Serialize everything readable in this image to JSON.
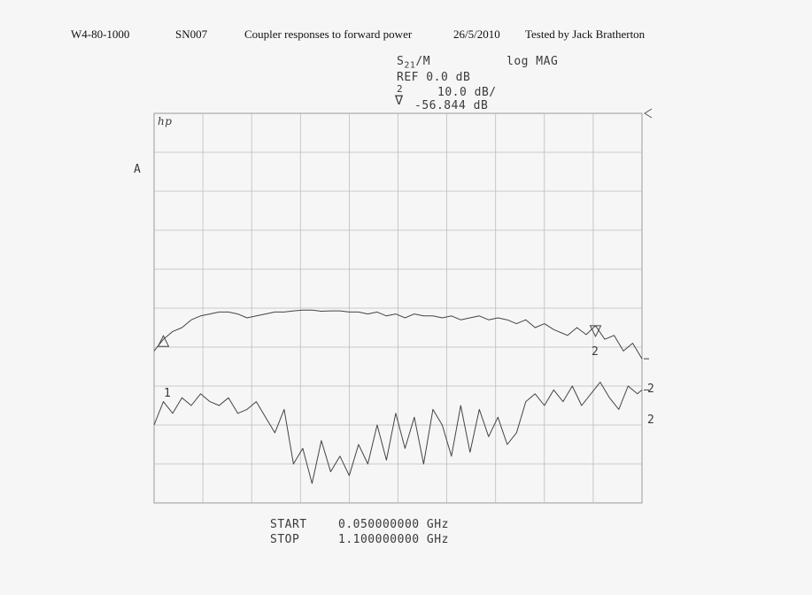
{
  "header": {
    "model": "W4-80-1000",
    "serial": "SN007",
    "description": "Coupler responses to forward power",
    "date": "26/5/2010",
    "tester": "Tested by Jack Bratherton"
  },
  "analyzer": {
    "param_s": "S",
    "param_sub": "21",
    "param_rest": "/M",
    "format": "log MAG",
    "ref": "REF 0.0 dB",
    "scale_channel": "2",
    "scale": "10.0 dB/",
    "marker_value": "-56.844 dB",
    "logo": "hp",
    "channel_label": "A",
    "start_label": "START",
    "start_value": "0.050000000 GHz",
    "stop_label": "STOP",
    "stop_value": "1.100000000 GHz",
    "marker1_label": "1",
    "marker2_label": "2",
    "trace_tag": "2"
  },
  "chart_data": {
    "type": "line",
    "x_unit": "GHz",
    "y_unit": "dB",
    "xlim": [
      0.05,
      1.1
    ],
    "ylim": [
      -100,
      0
    ],
    "reference_level_db": 0,
    "scale_db_per_div": 10,
    "grid": true,
    "series": [
      {
        "x": [
          0.05,
          0.07,
          0.09,
          0.11,
          0.13,
          0.15,
          0.17,
          0.19,
          0.21,
          0.23,
          0.25,
          0.27,
          0.29,
          0.31,
          0.33,
          0.35,
          0.37,
          0.39,
          0.41,
          0.43,
          0.45,
          0.47,
          0.49,
          0.51,
          0.53,
          0.55,
          0.57,
          0.59,
          0.61,
          0.63,
          0.65,
          0.67,
          0.69,
          0.71,
          0.73,
          0.75,
          0.77,
          0.79,
          0.81,
          0.83,
          0.85,
          0.87,
          0.89,
          0.91,
          0.92,
          0.94,
          0.96,
          0.98,
          1.0,
          1.02,
          1.04,
          1.06,
          1.08,
          1.1
        ],
        "y": [
          -61,
          -58,
          -56,
          -55,
          -53,
          -52,
          -51.5,
          -51,
          -51,
          -51.5,
          -52.5,
          -52,
          -51.5,
          -51,
          -51,
          -50.7,
          -50.5,
          -50.5,
          -50.8,
          -50.7,
          -50.7,
          -51,
          -51,
          -51.5,
          -51,
          -52,
          -51.5,
          -52.5,
          -51.5,
          -52,
          -52,
          -52.5,
          -52,
          -53,
          -52.5,
          -52,
          -53,
          -52.5,
          -53,
          -54,
          -53,
          -55,
          -54,
          -55.5,
          -56,
          -57,
          -55,
          -56.8,
          -54.5,
          -58,
          -57,
          -61,
          -59,
          -63
        ]
      },
      {
        "x": [
          0.05,
          0.07,
          0.09,
          0.11,
          0.13,
          0.15,
          0.17,
          0.19,
          0.21,
          0.23,
          0.25,
          0.27,
          0.29,
          0.31,
          0.33,
          0.35,
          0.37,
          0.39,
          0.41,
          0.43,
          0.45,
          0.47,
          0.49,
          0.51,
          0.53,
          0.55,
          0.57,
          0.59,
          0.61,
          0.63,
          0.65,
          0.67,
          0.69,
          0.71,
          0.73,
          0.75,
          0.77,
          0.79,
          0.81,
          0.83,
          0.85,
          0.87,
          0.89,
          0.91,
          0.93,
          0.95,
          0.97,
          0.99,
          1.01,
          1.03,
          1.05,
          1.07,
          1.09,
          1.1
        ],
        "y": [
          -80,
          -74,
          -77,
          -73,
          -75,
          -72,
          -74,
          -75,
          -73,
          -77,
          -76,
          -74,
          -78,
          -82,
          -76,
          -90,
          -86,
          -95,
          -84,
          -92,
          -88,
          -93,
          -85,
          -90,
          -80,
          -89,
          -77,
          -86,
          -78,
          -90,
          -76,
          -80,
          -88,
          -75,
          -87,
          -76,
          -83,
          -78,
          -85,
          -82,
          -74,
          -72,
          -75,
          -71,
          -74,
          -70,
          -75,
          -72,
          -69,
          -73,
          -76,
          -70,
          -72,
          -71
        ]
      }
    ]
  }
}
